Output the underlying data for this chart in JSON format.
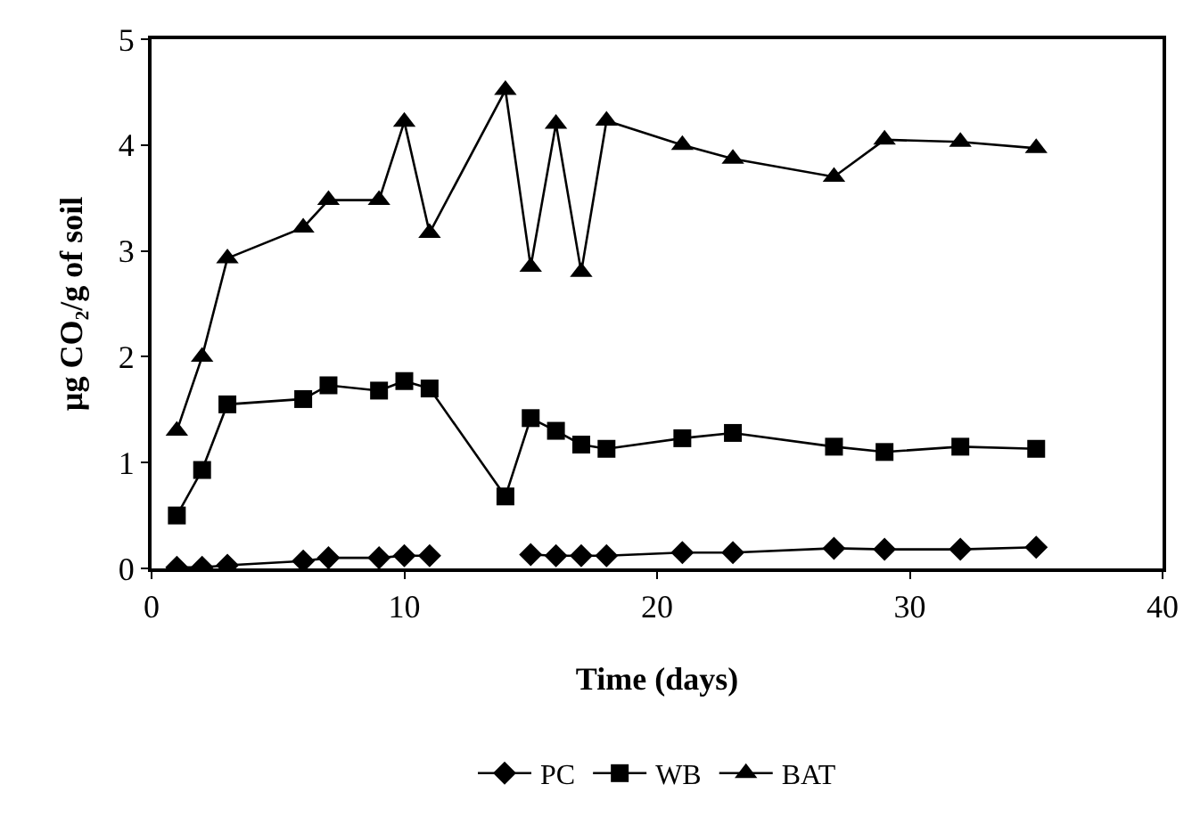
{
  "chart_data": {
    "type": "line",
    "xlabel": "Time (days)",
    "ylabel": "µg CO₂/g of soil",
    "x": [
      1,
      2,
      3,
      6,
      7,
      9,
      10,
      11,
      14,
      15,
      16,
      17,
      18,
      21,
      23,
      27,
      29,
      32,
      35
    ],
    "series": [
      {
        "name": "PC",
        "color": "#000000",
        "marker": "diamond",
        "values": [
          0.01,
          0.01,
          0.03,
          0.07,
          0.1,
          0.1,
          0.12,
          0.12,
          null,
          0.13,
          0.12,
          0.12,
          0.12,
          0.15,
          0.15,
          0.19,
          0.18,
          0.18,
          0.2
        ]
      },
      {
        "name": "WB",
        "color": "#000000",
        "marker": "square",
        "values": [
          0.5,
          0.93,
          1.55,
          1.6,
          1.73,
          1.68,
          1.77,
          1.7,
          0.68,
          1.42,
          1.3,
          1.17,
          1.13,
          1.23,
          1.28,
          1.15,
          1.1,
          1.15,
          1.13
        ]
      },
      {
        "name": "BAT",
        "color": "#000000",
        "marker": "triangle",
        "values": [
          1.3,
          2.0,
          2.93,
          3.22,
          3.48,
          3.48,
          4.22,
          3.17,
          4.52,
          2.85,
          4.2,
          2.8,
          4.23,
          4.0,
          3.87,
          3.7,
          4.05,
          4.03,
          3.97
        ]
      }
    ],
    "xlim": [
      0,
      40
    ],
    "xticks": [
      0,
      10,
      20,
      30,
      40
    ],
    "ylim": [
      0,
      5
    ],
    "yticks": [
      0,
      1,
      2,
      3,
      4,
      5
    ],
    "grid": false,
    "legend": "bottom",
    "line_style": "solid"
  }
}
